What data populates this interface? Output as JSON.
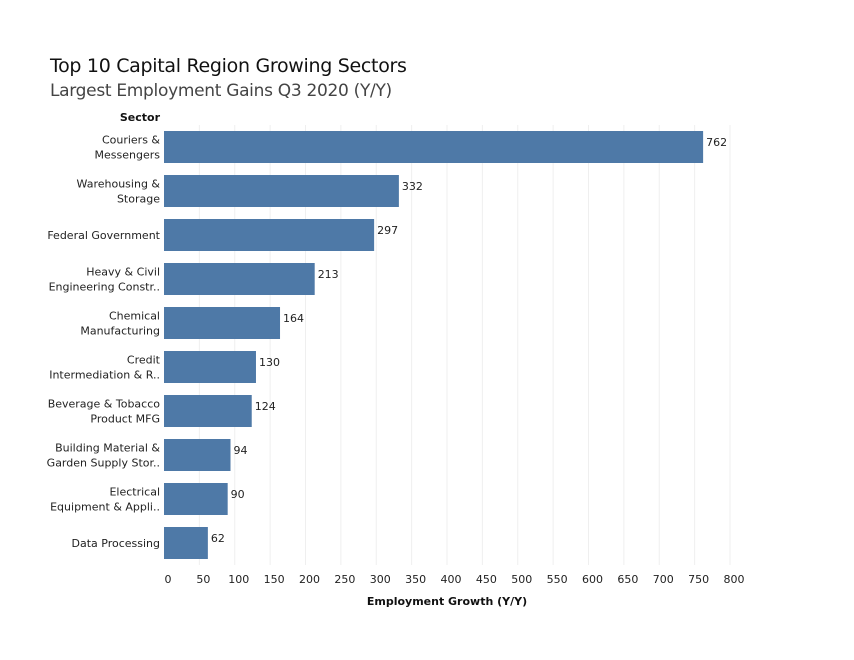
{
  "chart_data": {
    "type": "bar",
    "orientation": "horizontal",
    "title": "Top 10 Capital Region Growing Sectors",
    "subtitle": "Largest Employment Gains Q3 2020 (Y/Y)",
    "ylabel": "Sector",
    "xlabel": "Employment Growth (Y/Y)",
    "categories": [
      [
        "Couriers &",
        "Messengers"
      ],
      [
        "Warehousing &",
        "Storage"
      ],
      [
        "Federal Government"
      ],
      [
        "Heavy & Civil",
        "Engineering Constr.."
      ],
      [
        "Chemical",
        "Manufacturing"
      ],
      [
        "Credit",
        "Intermediation & R.."
      ],
      [
        "Beverage & Tobacco",
        "Product MFG"
      ],
      [
        "Building Material &",
        "Garden Supply Stor.."
      ],
      [
        "Electrical",
        "Equipment & Appli.."
      ],
      [
        "Data Processing"
      ]
    ],
    "values": [
      762,
      332,
      297,
      213,
      164,
      130,
      124,
      94,
      90,
      62
    ],
    "xlim": [
      0,
      800
    ],
    "xticks": [
      0,
      50,
      100,
      150,
      200,
      250,
      300,
      350,
      400,
      450,
      500,
      550,
      600,
      650,
      700,
      750,
      800
    ],
    "grid": "vertical",
    "bar_color": "#4e79a7"
  }
}
